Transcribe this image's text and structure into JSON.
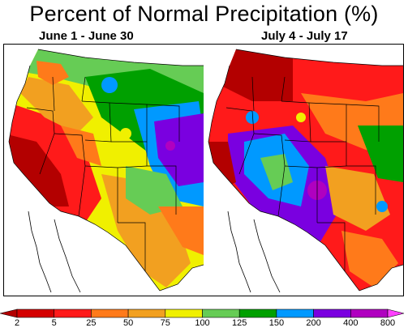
{
  "title": "Percent of Normal Precipitation (%)",
  "panels": [
    {
      "subtitle": "June 1 - June 30"
    },
    {
      "subtitle": "July 4 - July 17"
    }
  ],
  "legend": {
    "ticks": [
      "2",
      "5",
      "25",
      "50",
      "75",
      "100",
      "125",
      "150",
      "200",
      "400",
      "800"
    ],
    "colors": [
      "#b30000",
      "#d40000",
      "#ff1a1a",
      "#ff7a1a",
      "#f2a020",
      "#f0f000",
      "#66cc55",
      "#00a000",
      "#0099ff",
      "#7a00e0",
      "#b000c0",
      "#ff40ff"
    ]
  }
}
